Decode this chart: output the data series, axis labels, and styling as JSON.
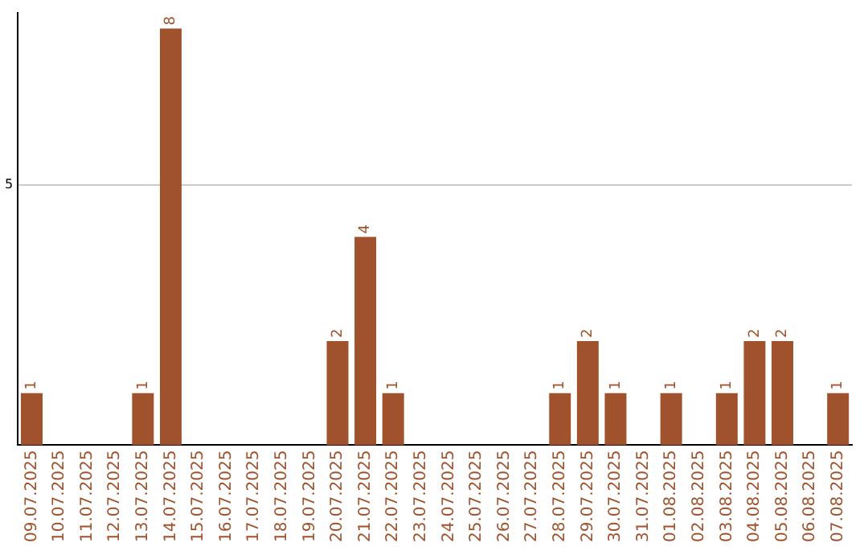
{
  "chart_data": {
    "type": "bar",
    "categories": [
      "09.07.2025",
      "10.07.2025",
      "11.07.2025",
      "12.07.2025",
      "13.07.2025",
      "14.07.2025",
      "15.07.2025",
      "16.07.2025",
      "17.07.2025",
      "18.07.2025",
      "19.07.2025",
      "20.07.2025",
      "21.07.2025",
      "22.07.2025",
      "23.07.2025",
      "24.07.2025",
      "25.07.2025",
      "26.07.2025",
      "27.07.2025",
      "28.07.2025",
      "29.07.2025",
      "30.07.2025",
      "31.07.2025",
      "01.08.2025",
      "02.08.2025",
      "03.08.2025",
      "04.08.2025",
      "05.08.2025",
      "06.08.2025",
      "07.08.2025"
    ],
    "values": [
      1,
      0,
      0,
      0,
      1,
      8,
      0,
      0,
      0,
      0,
      0,
      2,
      4,
      1,
      0,
      0,
      0,
      0,
      0,
      1,
      2,
      1,
      0,
      1,
      0,
      1,
      2,
      2,
      0,
      1
    ],
    "value_labels": [
      "1",
      null,
      null,
      null,
      "1",
      "8",
      null,
      null,
      null,
      null,
      null,
      "2",
      "4",
      "1",
      null,
      null,
      null,
      null,
      null,
      "1",
      "2",
      "1",
      null,
      "1",
      null,
      "1",
      "2",
      "2",
      null,
      "1"
    ],
    "color": "#a0522d",
    "ylim": [
      0,
      8.3
    ],
    "yticks": [
      5
    ],
    "grid": "y"
  }
}
